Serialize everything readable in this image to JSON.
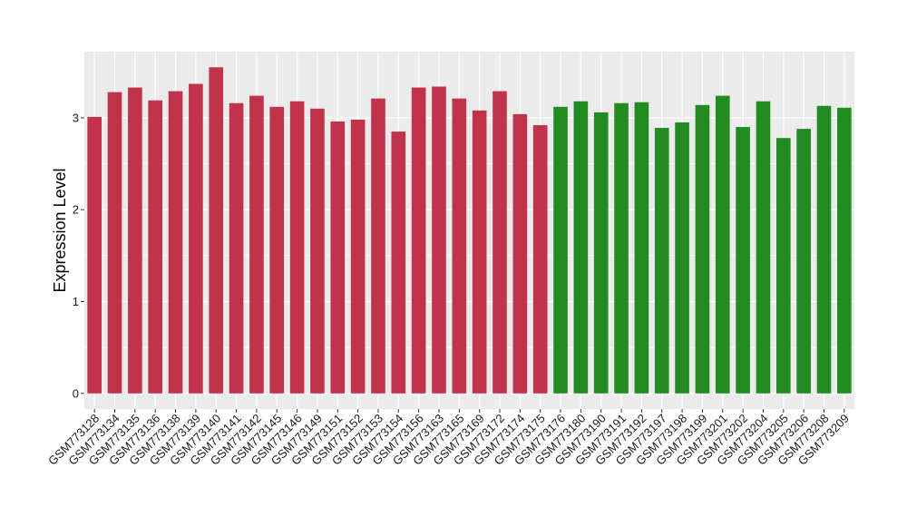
{
  "chart_data": {
    "type": "bar",
    "title": "",
    "xlabel": "",
    "ylabel": "Expression Level",
    "ylim": [
      -0.17,
      3.72
    ],
    "yticks": [
      0,
      1,
      2,
      3
    ],
    "grid": true,
    "legend": "none",
    "colors": {
      "panel_background": "#ebebeb",
      "grid": "#ffffff",
      "group_a": "#c0334b",
      "group_b": "#228b22"
    },
    "categories": [
      "GSM773128",
      "GSM773134",
      "GSM773135",
      "GSM773136",
      "GSM773138",
      "GSM773139",
      "GSM773140",
      "GSM773141",
      "GSM773142",
      "GSM773145",
      "GSM773146",
      "GSM773149",
      "GSM773151",
      "GSM773152",
      "GSM773153",
      "GSM773154",
      "GSM773156",
      "GSM773163",
      "GSM773165",
      "GSM773169",
      "GSM773172",
      "GSM773174",
      "GSM773175",
      "GSM773176",
      "GSM773180",
      "GSM773190",
      "GSM773191",
      "GSM773192",
      "GSM773197",
      "GSM773198",
      "GSM773199",
      "GSM773201",
      "GSM773202",
      "GSM773204",
      "GSM773205",
      "GSM773206",
      "GSM773208",
      "GSM773209"
    ],
    "values": [
      3.01,
      3.28,
      3.33,
      3.19,
      3.29,
      3.37,
      3.55,
      3.16,
      3.24,
      3.12,
      3.18,
      3.1,
      2.96,
      2.98,
      3.21,
      2.85,
      3.33,
      3.34,
      3.21,
      3.08,
      3.29,
      3.04,
      2.92,
      3.12,
      3.18,
      3.06,
      3.16,
      3.17,
      2.89,
      2.95,
      3.14,
      3.24,
      2.9,
      3.18,
      2.78,
      2.88,
      3.13,
      3.11
    ],
    "groups": [
      "a",
      "a",
      "a",
      "a",
      "a",
      "a",
      "a",
      "a",
      "a",
      "a",
      "a",
      "a",
      "a",
      "a",
      "a",
      "a",
      "a",
      "a",
      "a",
      "a",
      "a",
      "a",
      "a",
      "b",
      "b",
      "b",
      "b",
      "b",
      "b",
      "b",
      "b",
      "b",
      "b",
      "b",
      "b",
      "b",
      "b",
      "b"
    ]
  }
}
